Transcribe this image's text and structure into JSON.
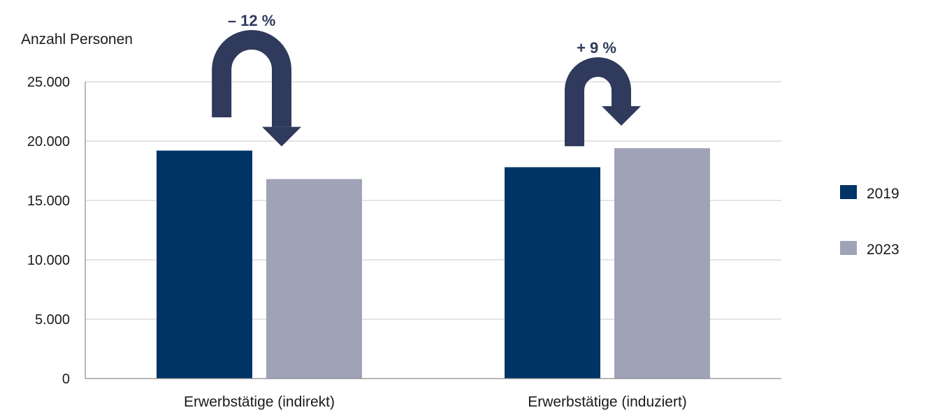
{
  "chart_data": {
    "type": "bar",
    "ylabel": "Anzahl Personen",
    "ylim": [
      0,
      25000
    ],
    "yticks": [
      0,
      5000,
      10000,
      15000,
      20000,
      25000
    ],
    "ytick_labels": [
      "0",
      "5.000",
      "10.000",
      "15.000",
      "20.000",
      "25.000"
    ],
    "categories": [
      "Erwerbstätige (indirekt)",
      "Erwerbstätige (induziert)"
    ],
    "series": [
      {
        "name": "2019",
        "color": "#003366",
        "values": [
          19200,
          17800
        ]
      },
      {
        "name": "2023",
        "color": "#a0a2b8",
        "values": [
          16800,
          19400
        ]
      }
    ],
    "changes": [
      {
        "label": "– 12 %",
        "direction": "down"
      },
      {
        "label": "+ 9 %",
        "direction": "up"
      }
    ],
    "arrow_color": "#2f3a5c",
    "grid": true,
    "legend_position": "right"
  }
}
